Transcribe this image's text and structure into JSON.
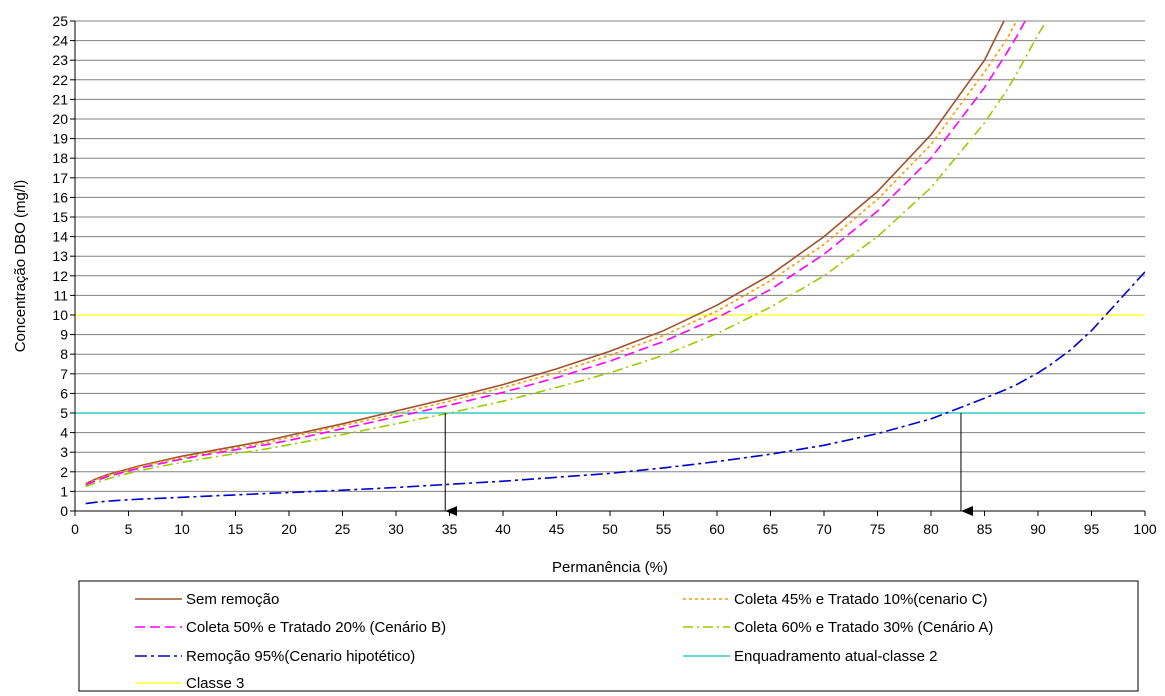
{
  "chart_data": {
    "type": "line",
    "title": "",
    "xlabel": "Permanência (%)",
    "ylabel": "Concentração DBO (mg/l)",
    "xlim": [
      0,
      100
    ],
    "ylim": [
      0,
      25
    ],
    "x_ticks": [
      0,
      5,
      10,
      15,
      20,
      25,
      30,
      35,
      40,
      45,
      50,
      55,
      60,
      65,
      70,
      75,
      80,
      85,
      90,
      95,
      100
    ],
    "y_ticks": [
      0,
      1,
      2,
      3,
      4,
      5,
      6,
      7,
      8,
      9,
      10,
      11,
      12,
      13,
      14,
      15,
      16,
      17,
      18,
      19,
      20,
      21,
      22,
      23,
      24,
      25
    ],
    "grid": "horizontal",
    "legend_position": "bottom",
    "x": [
      1,
      2,
      3,
      4,
      5,
      6,
      8,
      10,
      12,
      15,
      18,
      20,
      25,
      30,
      35,
      40,
      45,
      50,
      55,
      60,
      65,
      70,
      75,
      80,
      85,
      87,
      88,
      89,
      90,
      91,
      92,
      93,
      94,
      95,
      96,
      97,
      98,
      99,
      100
    ],
    "series": [
      {
        "name": "Sem remoção",
        "color": "#A0522D",
        "dash": "solid",
        "values": [
          1.4,
          1.65,
          1.85,
          2.0,
          2.15,
          2.3,
          2.55,
          2.8,
          3.0,
          3.3,
          3.6,
          3.85,
          4.45,
          5.1,
          5.75,
          6.45,
          7.25,
          8.15,
          9.2,
          10.5,
          12.05,
          14.0,
          16.3,
          19.2,
          23.0,
          25.2,
          null,
          null,
          null,
          null,
          null,
          null,
          null,
          null,
          null,
          null,
          null,
          null,
          null
        ]
      },
      {
        "name": "Coleta 45% e Tratado 10%(cenario C)",
        "color": "#FF9900",
        "dash": "dotted",
        "values": [
          1.37,
          1.6,
          1.8,
          1.95,
          2.1,
          2.25,
          2.5,
          2.72,
          2.92,
          3.22,
          3.5,
          3.75,
          4.35,
          4.95,
          5.6,
          6.3,
          7.05,
          7.95,
          8.95,
          10.2,
          11.75,
          13.6,
          15.9,
          18.7,
          22.4,
          24.0,
          25.0,
          null,
          null,
          null,
          null,
          null,
          null,
          null,
          null,
          null,
          null,
          null,
          null
        ]
      },
      {
        "name": "Coleta 50% e Tratado 20% (Cenário B)",
        "color": "#FF00FF",
        "dash": "dashed",
        "values": [
          1.33,
          1.55,
          1.75,
          1.9,
          2.05,
          2.18,
          2.42,
          2.65,
          2.85,
          3.12,
          3.4,
          3.6,
          4.2,
          4.8,
          5.4,
          6.05,
          6.8,
          7.65,
          8.65,
          9.85,
          11.3,
          13.1,
          15.3,
          18.0,
          21.6,
          23.3,
          24.2,
          25.2,
          null,
          null,
          null,
          null,
          null,
          null,
          null,
          null,
          null,
          null,
          null
        ]
      },
      {
        "name": "Coleta 60% e Tratado 30% (Cenário A)",
        "color": "#99CC00",
        "dash": "dashdot",
        "values": [
          1.25,
          1.45,
          1.63,
          1.78,
          1.92,
          2.05,
          2.28,
          2.48,
          2.67,
          2.93,
          3.18,
          3.38,
          3.9,
          4.45,
          5.0,
          5.6,
          6.3,
          7.05,
          7.95,
          9.05,
          10.4,
          12.0,
          14.0,
          16.5,
          19.8,
          21.4,
          22.3,
          23.3,
          24.3,
          25.2,
          null,
          null,
          null,
          null,
          null,
          null,
          null,
          null,
          null
        ]
      },
      {
        "name": "Remoção 95%(Cenario hipotético)",
        "color": "#0000CC",
        "dash": "dashdotlong",
        "values": [
          0.38,
          0.45,
          0.5,
          0.54,
          0.57,
          0.6,
          0.65,
          0.7,
          0.75,
          0.82,
          0.9,
          0.94,
          1.06,
          1.2,
          1.36,
          1.52,
          1.72,
          1.92,
          2.2,
          2.52,
          2.9,
          3.35,
          3.95,
          4.7,
          5.75,
          6.2,
          6.45,
          6.75,
          7.05,
          7.4,
          7.8,
          8.2,
          8.7,
          9.2,
          9.8,
          10.4,
          11.0,
          11.6,
          12.2
        ]
      },
      {
        "name": "Enquadramento atual-classe 2",
        "color": "#33CCCC",
        "dash": "solid",
        "constant": 5
      },
      {
        "name": "Classe 3",
        "color": "#FFFF33",
        "dash": "solid",
        "constant": 10
      }
    ],
    "annotations": [
      {
        "type": "arrow",
        "x": 34.6,
        "y_from": 5,
        "y_to": 0,
        "color": "#000000"
      },
      {
        "type": "arrow",
        "x": 82.8,
        "y_from": 5,
        "y_to": 0,
        "color": "#000000"
      }
    ]
  }
}
